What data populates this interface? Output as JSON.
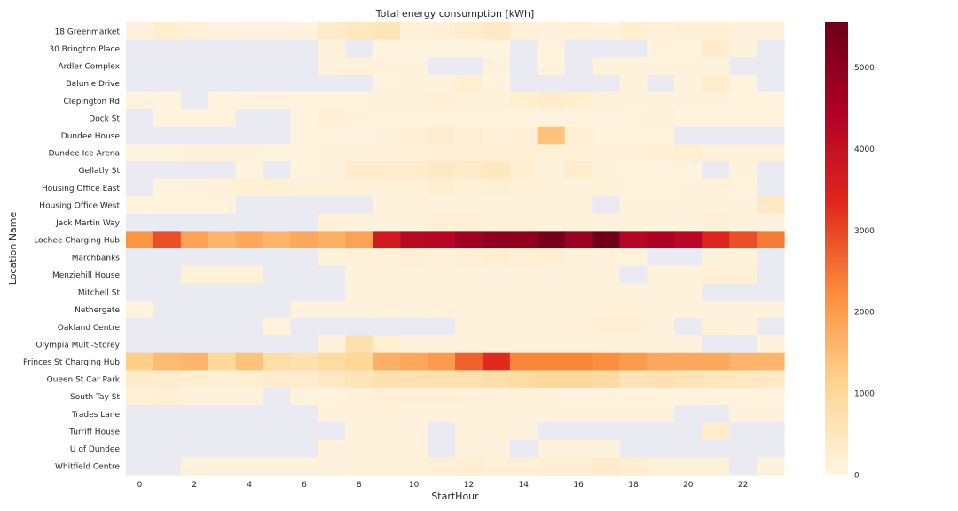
{
  "chart_data": {
    "type": "heatmap",
    "title": "Total energy consumption [kWh]",
    "xlabel": "StartHour",
    "ylabel": "Location Name",
    "x": [
      0,
      1,
      2,
      3,
      4,
      5,
      6,
      7,
      8,
      9,
      10,
      11,
      12,
      13,
      14,
      15,
      16,
      17,
      18,
      19,
      20,
      21,
      22,
      23
    ],
    "x_tick_labels": [
      "0",
      "2",
      "4",
      "6",
      "8",
      "10",
      "12",
      "14",
      "16",
      "18",
      "20",
      "22"
    ],
    "y": [
      "18 Greenmarket",
      "30 Brington Place",
      "Ardler Complex",
      "Balunie Drive",
      "Clepington Rd",
      "Dock St",
      "Dundee House",
      "Dundee Ice Arena",
      "Gellatly St",
      "Housing Office East",
      "Housing Office West",
      "Jack Martin Way",
      "Lochee Charging Hub",
      "Marchbanks",
      "Menziehill House",
      "Mitchell St",
      "Nethergate",
      "Oakland Centre",
      "Olympia Multi-Storey",
      "Princes St Charging Hub",
      "Queen St Car Park",
      "South Tay St",
      "Trades Lane",
      "Turriff House",
      "U of Dundee",
      "Whitfield Centre"
    ],
    "values": [
      [
        100,
        250,
        150,
        80,
        60,
        60,
        80,
        350,
        500,
        550,
        150,
        200,
        300,
        400,
        150,
        100,
        150,
        80,
        250,
        150,
        200,
        200,
        100,
        100
      ],
      [
        null,
        null,
        null,
        null,
        null,
        null,
        null,
        100,
        null,
        50,
        50,
        50,
        50,
        50,
        null,
        80,
        null,
        null,
        null,
        80,
        80,
        300,
        100,
        null
      ],
      [
        null,
        null,
        null,
        null,
        null,
        null,
        null,
        100,
        150,
        100,
        100,
        null,
        null,
        100,
        null,
        80,
        null,
        100,
        100,
        100,
        100,
        100,
        null,
        null
      ],
      [
        null,
        null,
        null,
        null,
        null,
        null,
        null,
        null,
        null,
        60,
        100,
        100,
        250,
        60,
        null,
        null,
        null,
        null,
        100,
        null,
        100,
        300,
        80,
        null
      ],
      [
        80,
        50,
        null,
        80,
        80,
        80,
        80,
        80,
        80,
        150,
        150,
        200,
        150,
        150,
        250,
        300,
        250,
        150,
        100,
        100,
        100,
        100,
        80,
        80
      ],
      [
        null,
        80,
        80,
        80,
        null,
        null,
        80,
        200,
        100,
        80,
        80,
        80,
        80,
        80,
        80,
        80,
        80,
        60,
        80,
        150,
        80,
        80,
        80,
        80
      ],
      [
        null,
        null,
        null,
        null,
        null,
        null,
        80,
        80,
        60,
        100,
        200,
        300,
        250,
        150,
        200,
        1400,
        200,
        80,
        80,
        80,
        null,
        null,
        null,
        null
      ],
      [
        60,
        80,
        100,
        100,
        100,
        80,
        80,
        100,
        100,
        150,
        150,
        200,
        200,
        200,
        200,
        150,
        150,
        150,
        150,
        200,
        250,
        150,
        150,
        150
      ],
      [
        null,
        null,
        null,
        null,
        80,
        null,
        80,
        100,
        300,
        300,
        300,
        400,
        350,
        500,
        250,
        100,
        300,
        100,
        80,
        80,
        50,
        null,
        100,
        null
      ],
      [
        null,
        80,
        100,
        150,
        200,
        200,
        150,
        150,
        150,
        150,
        150,
        250,
        150,
        200,
        150,
        150,
        100,
        150,
        80,
        80,
        100,
        150,
        80,
        null
      ],
      [
        80,
        80,
        80,
        80,
        null,
        null,
        null,
        null,
        null,
        100,
        100,
        100,
        100,
        100,
        100,
        100,
        150,
        null,
        100,
        100,
        100,
        100,
        100,
        400
      ],
      [
        null,
        null,
        null,
        null,
        null,
        null,
        null,
        150,
        100,
        100,
        100,
        200,
        200,
        150,
        150,
        100,
        100,
        100,
        100,
        100,
        100,
        200,
        100,
        100
      ],
      [
        2100,
        2900,
        1900,
        1600,
        1800,
        1600,
        1800,
        1700,
        1900,
        3700,
        4200,
        4300,
        4700,
        5000,
        5000,
        5400,
        4800,
        5500,
        4300,
        4500,
        4200,
        3400,
        2900,
        2400
      ],
      [
        null,
        null,
        null,
        null,
        null,
        null,
        null,
        100,
        150,
        150,
        200,
        150,
        200,
        250,
        200,
        250,
        100,
        100,
        80,
        null,
        null,
        100,
        100,
        null
      ],
      [
        null,
        null,
        150,
        150,
        150,
        null,
        null,
        null,
        100,
        100,
        100,
        100,
        100,
        100,
        100,
        100,
        100,
        100,
        null,
        100,
        100,
        200,
        200,
        null
      ],
      [
        null,
        null,
        null,
        null,
        null,
        null,
        null,
        null,
        100,
        100,
        100,
        100,
        100,
        100,
        100,
        100,
        100,
        100,
        100,
        100,
        100,
        null,
        null,
        null
      ],
      [
        80,
        null,
        null,
        null,
        null,
        null,
        100,
        100,
        100,
        150,
        100,
        150,
        100,
        150,
        100,
        100,
        100,
        150,
        150,
        150,
        100,
        100,
        100,
        100
      ],
      [
        null,
        null,
        null,
        null,
        null,
        80,
        null,
        null,
        null,
        null,
        null,
        null,
        100,
        100,
        100,
        100,
        150,
        200,
        200,
        100,
        null,
        150,
        100,
        null
      ],
      [
        null,
        null,
        null,
        null,
        null,
        null,
        null,
        100,
        700,
        250,
        100,
        100,
        100,
        100,
        100,
        100,
        100,
        100,
        100,
        100,
        100,
        null,
        null,
        100
      ],
      [
        1200,
        1500,
        1600,
        1000,
        1400,
        800,
        700,
        900,
        1000,
        1700,
        1800,
        2000,
        2700,
        3300,
        2300,
        2300,
        2300,
        2200,
        2000,
        1800,
        1800,
        1800,
        1600,
        1600
      ],
      [
        300,
        300,
        250,
        200,
        250,
        300,
        300,
        400,
        600,
        700,
        700,
        700,
        700,
        800,
        900,
        1000,
        1000,
        900,
        600,
        700,
        600,
        500,
        500,
        400
      ],
      [
        150,
        200,
        100,
        100,
        100,
        null,
        80,
        80,
        150,
        200,
        200,
        200,
        150,
        150,
        150,
        100,
        80,
        80,
        80,
        80,
        80,
        80,
        80,
        80
      ],
      [
        null,
        null,
        null,
        null,
        null,
        null,
        null,
        100,
        150,
        150,
        100,
        100,
        100,
        100,
        100,
        100,
        100,
        100,
        100,
        100,
        null,
        null,
        100,
        100
      ],
      [
        null,
        null,
        null,
        null,
        null,
        null,
        null,
        null,
        100,
        100,
        100,
        null,
        100,
        100,
        100,
        null,
        null,
        null,
        null,
        null,
        null,
        300,
        null,
        null
      ],
      [
        null,
        null,
        null,
        null,
        null,
        null,
        null,
        100,
        100,
        100,
        100,
        null,
        100,
        100,
        null,
        100,
        100,
        100,
        null,
        null,
        null,
        null,
        null,
        null
      ],
      [
        null,
        null,
        100,
        100,
        100,
        100,
        100,
        100,
        150,
        150,
        150,
        200,
        250,
        200,
        200,
        250,
        250,
        350,
        250,
        150,
        150,
        150,
        null,
        100
      ]
    ],
    "colormap": "YlOrRd",
    "missing_color": "#eaeaf2",
    "colorbar": {
      "min": 0,
      "max": 5550,
      "ticks": [
        0,
        1000,
        2000,
        3000,
        4000,
        5000
      ]
    },
    "colors": [
      "#fff5e3",
      "#fed590",
      "#fd8d3c",
      "#e0271c",
      "#b00026",
      "#6d0016"
    ]
  }
}
